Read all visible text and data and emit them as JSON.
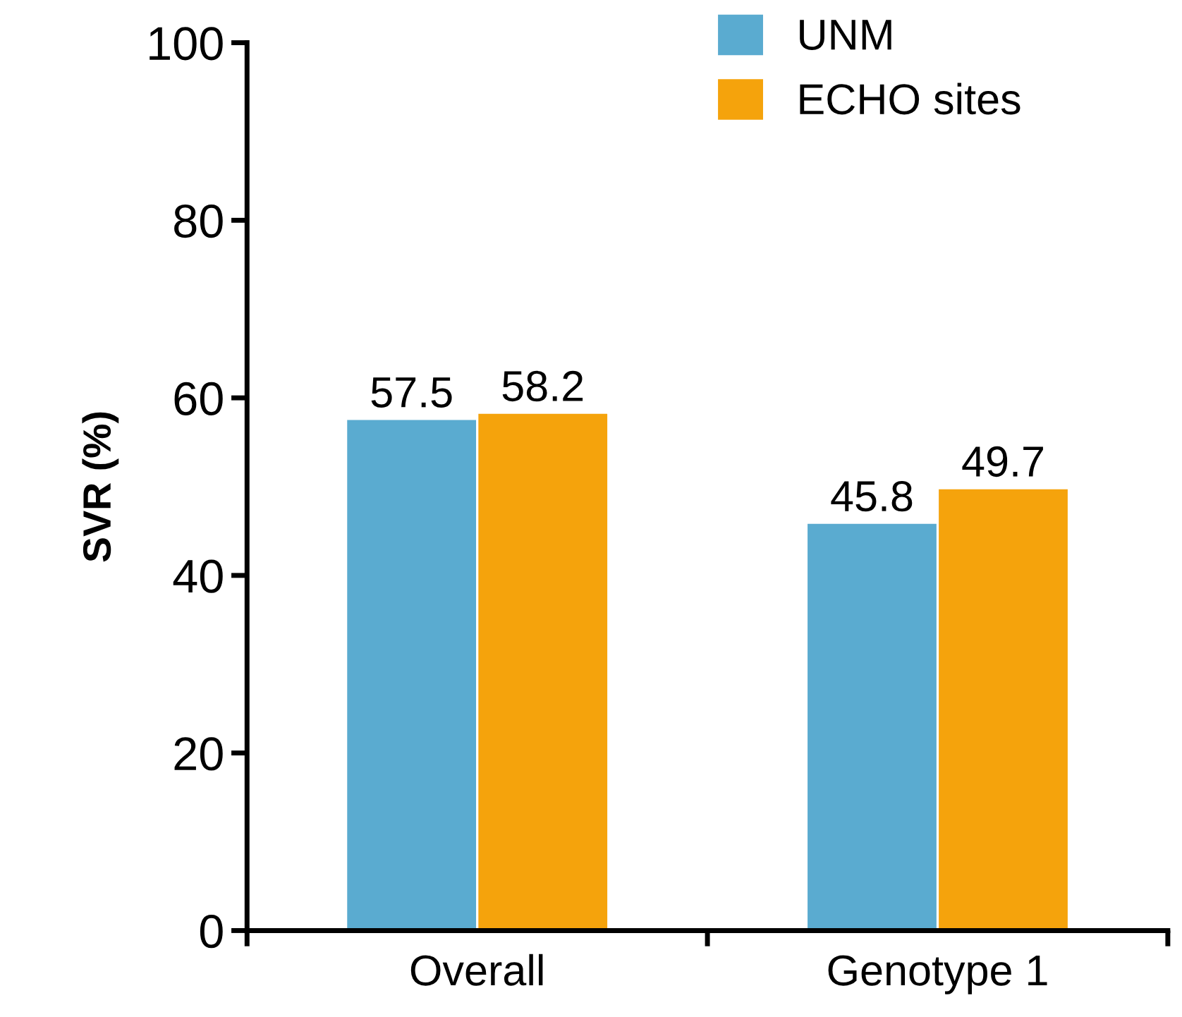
{
  "chart_data": {
    "type": "bar",
    "ylabel": "SVR (%)",
    "categories": [
      "Overall",
      "Genotype 1"
    ],
    "series": [
      {
        "name": "UNM",
        "color": "#5aabd0",
        "values": [
          57.5,
          45.8
        ]
      },
      {
        "name": "ECHO sites",
        "color": "#f5a30c",
        "values": [
          58.2,
          49.7
        ]
      }
    ],
    "ylim": [
      0,
      100
    ],
    "yticks": [
      0,
      20,
      40,
      60,
      80,
      100
    ],
    "data_labels": true,
    "legend": "top right",
    "grid": false
  }
}
